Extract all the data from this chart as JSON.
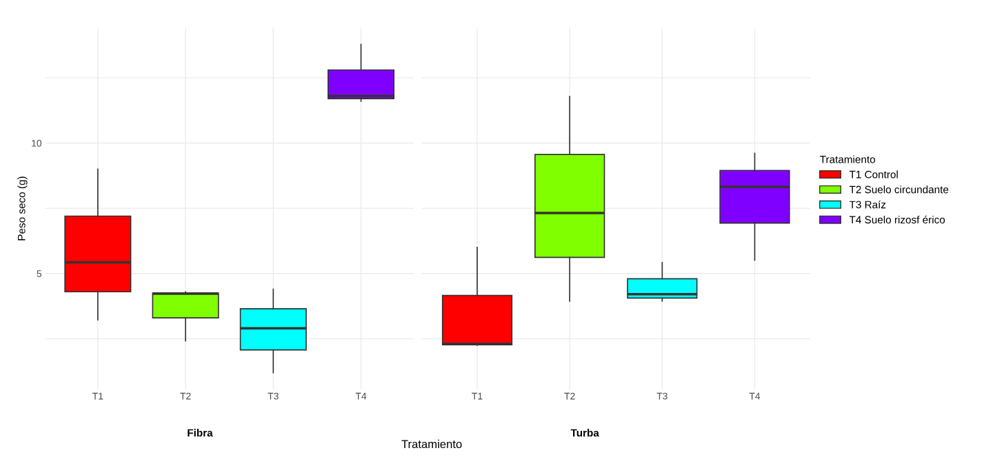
{
  "chart_data": [
    {
      "type": "box",
      "title": "Fibra",
      "xlabel": "Tratamiento",
      "ylabel": "Peso seco (g)",
      "categories": [
        "T1",
        "T2",
        "T3",
        "T4"
      ],
      "ylim": [
        0.57,
        14.41
      ],
      "yticks": [
        {
          "value": 2.5,
          "label": null
        },
        5,
        {
          "value": 7.5,
          "label": null
        },
        10,
        {
          "value": 12.5,
          "label": null
        }
      ],
      "grid": true,
      "series": [
        {
          "color": "#ff0000",
          "boxes": [
            {
              "low": 3.22,
              "q1": 4.3,
              "median": 5.43,
              "q3": 7.2,
              "high": 9.0
            },
            null,
            null,
            null
          ]
        },
        {
          "color": "#80ff00",
          "boxes": [
            null,
            {
              "low": 2.42,
              "q1": 3.3,
              "median": 4.23,
              "q3": 4.25,
              "high": 4.3
            },
            null,
            null
          ]
        },
        {
          "color": "#00ffff",
          "boxes": [
            null,
            null,
            {
              "low": 1.2,
              "q1": 2.07,
              "median": 2.9,
              "q3": 3.65,
              "high": 4.4
            },
            null
          ]
        },
        {
          "color": "#8000ff",
          "boxes": [
            null,
            null,
            null,
            {
              "low": 11.6,
              "q1": 11.7,
              "median": 11.8,
              "q3": 12.8,
              "high": 13.78
            }
          ]
        }
      ]
    },
    {
      "type": "box",
      "title": "Turba",
      "categories": [
        "T1",
        "T2",
        "T3",
        "T4"
      ],
      "ylim": [
        0.57,
        14.41
      ],
      "yticks": [
        {
          "value": 2.5,
          "label": null
        },
        5,
        {
          "value": 7.5,
          "label": null
        },
        10,
        {
          "value": 12.5,
          "label": null
        }
      ],
      "grid": true,
      "tick_labels": "x",
      "legend": "right",
      "legend_title": "Tratamiento",
      "series": [
        {
          "name": "T1 Control",
          "color": "#ff0000",
          "boxes": [
            {
              "low": 2.25,
              "q1": 2.27,
              "median": 2.3,
              "q3": 4.16,
              "high": 6.0
            },
            null,
            null,
            null
          ]
        },
        {
          "name": "T2 Suelo circundante",
          "color": "#80ff00",
          "boxes": [
            null,
            {
              "low": 3.94,
              "q1": 5.62,
              "median": 7.32,
              "q3": 9.56,
              "high": 11.79
            },
            null,
            null
          ]
        },
        {
          "name": "T3 Raíz",
          "color": "#00ffff",
          "boxes": [
            null,
            null,
            {
              "low": 3.94,
              "q1": 4.06,
              "median": 4.21,
              "q3": 4.8,
              "high": 5.42
            },
            null
          ]
        },
        {
          "name": "T4 Suelo rizosf érico",
          "color": "#8000ff",
          "boxes": [
            null,
            null,
            null,
            {
              "low": 5.51,
              "q1": 6.93,
              "median": 8.32,
              "q3": 8.95,
              "high": 9.61
            }
          ]
        }
      ]
    }
  ]
}
